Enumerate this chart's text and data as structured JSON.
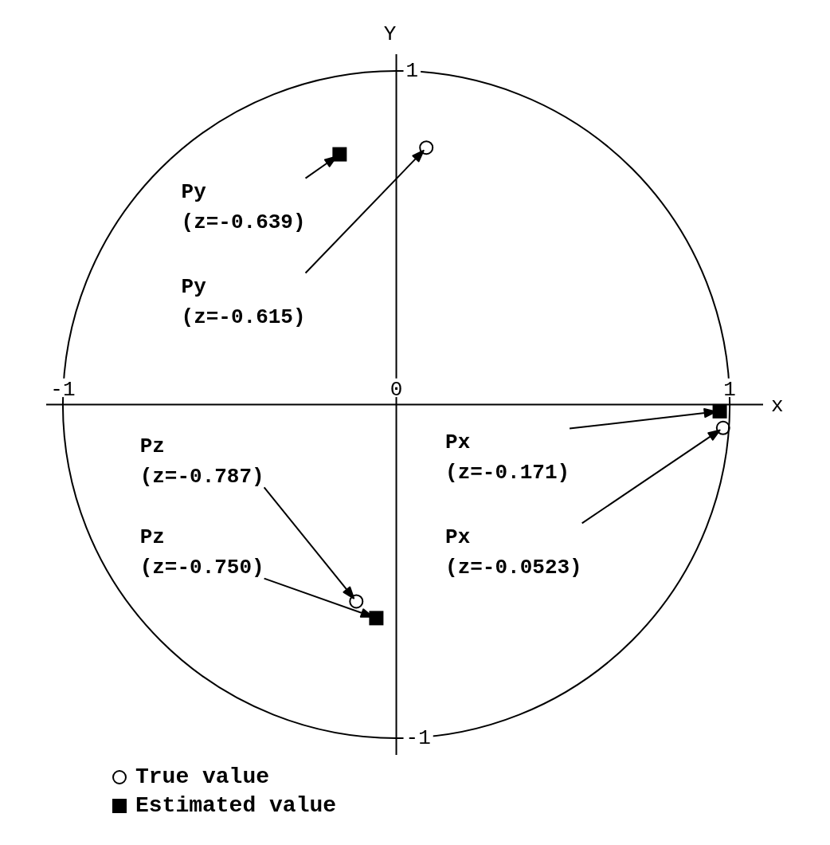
{
  "chart_data": {
    "type": "scatter",
    "xlabel": "x",
    "ylabel": "Y",
    "xlim": [
      -1.05,
      1.1
    ],
    "ylim": [
      -1.05,
      1.05
    ],
    "xticks": [
      -1,
      0,
      1
    ],
    "yticks": [
      -1,
      1
    ],
    "grid": false,
    "legend": "bottom left",
    "series": [
      {
        "name": "True value",
        "color": "#000000",
        "marker": "circle",
        "x": [
          0.09,
          0.98,
          -0.12
        ],
        "values": [
          0.77,
          -0.07,
          -0.59
        ]
      },
      {
        "name": "Estimated value",
        "color": "#000000",
        "marker": "square",
        "x": [
          -0.17,
          0.97,
          -0.06
        ],
        "values": [
          0.75,
          -0.02,
          -0.64
        ]
      }
    ],
    "annotations": [
      "Py\n(z=-0.639)",
      "Py\n(z=-0.615)",
      "Pz\n(z=-0.787)",
      "Pz\n(z=-0.750)",
      "Px\n(z=-0.171)",
      "Px\n(z=-0.0523)"
    ]
  }
}
